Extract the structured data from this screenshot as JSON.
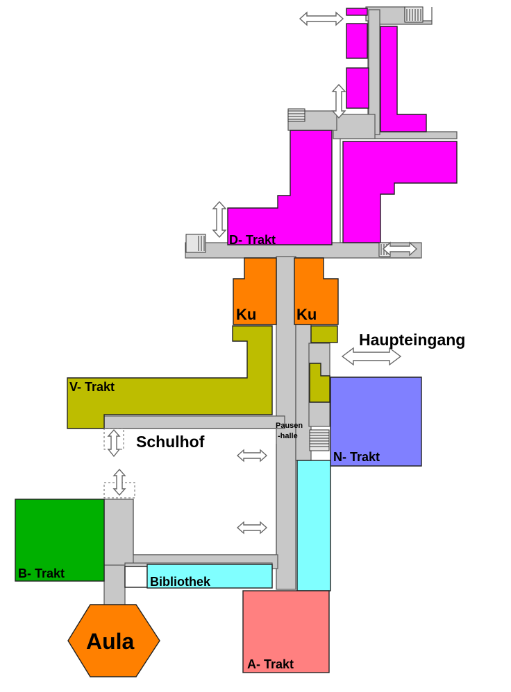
{
  "colors": {
    "corridor": "#c8c8c8",
    "d_trakt": "#ff00ff",
    "kunst": "#ff8000",
    "v_trakt": "#bdbd00",
    "n_trakt": "#8080ff",
    "a_trakt": "#ff8080",
    "b_trakt": "#00b000",
    "bibliothek": "#80ffff",
    "aula": "#ff8000"
  },
  "labels": {
    "d_trakt": "D- Trakt",
    "ku_left": "Ku",
    "ku_right": "Ku",
    "haupteingang": "Haupteingang",
    "v_trakt": "V- Trakt",
    "schulhof": "Schulhof",
    "pausenhalle_line1": "Pausen",
    "pausenhalle_line2": "-halle",
    "n_trakt": "N- Trakt",
    "b_trakt": "B- Trakt",
    "bibliothek": "Bibliothek",
    "aula": "Aula",
    "a_trakt": "A- Trakt"
  }
}
